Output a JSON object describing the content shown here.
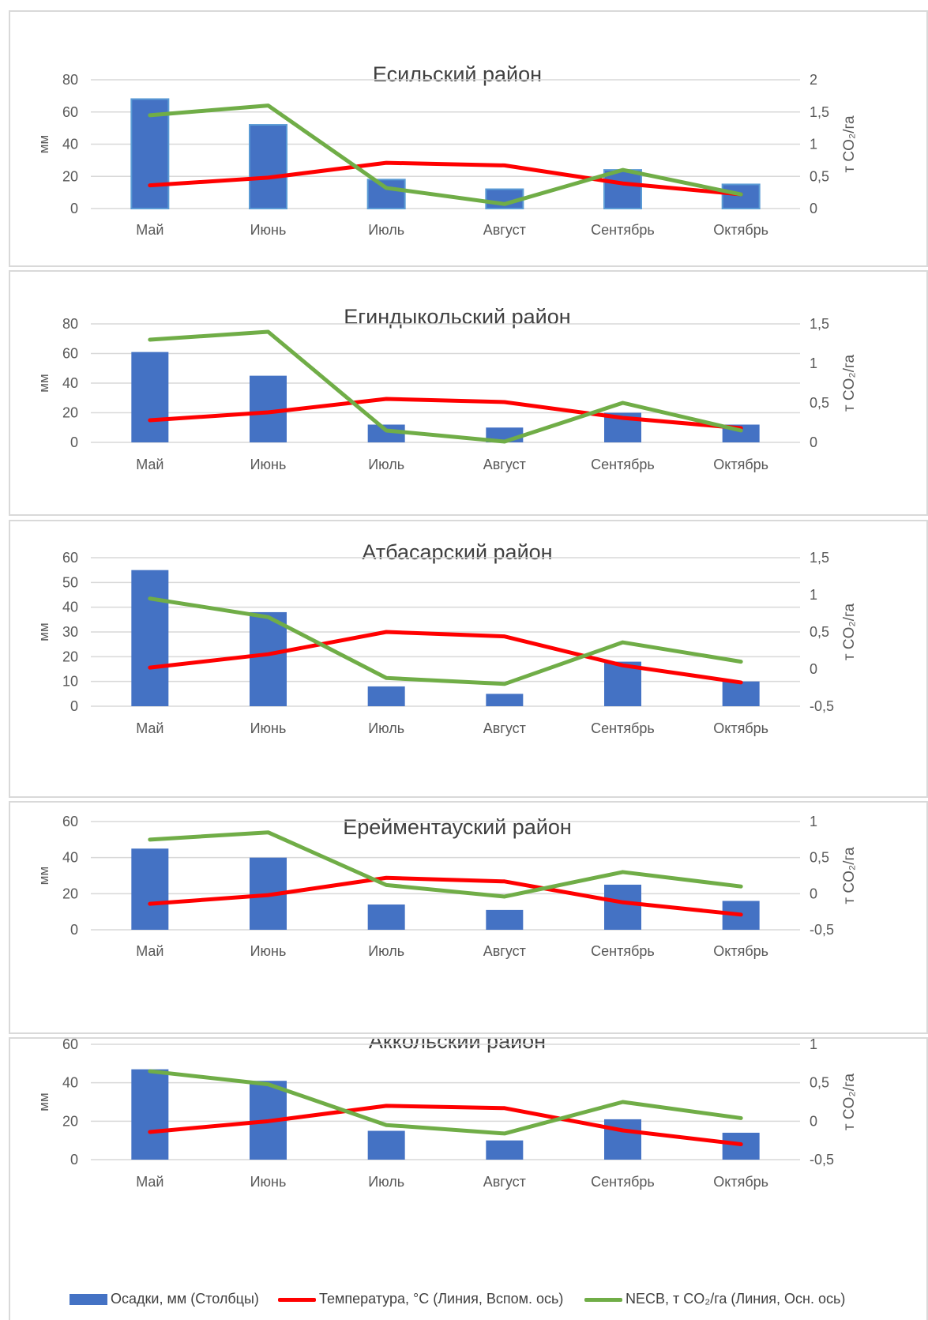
{
  "colors": {
    "bars": "#4472c4",
    "temperature": "#ff0000",
    "necb": "#70ad47",
    "grid": "#d9d9d9",
    "text": "#595959"
  },
  "legend": {
    "bars": "Осадки, мм (Столбцы)",
    "temperature": "Температура, °C (Линия, Вспом. ось)",
    "necb": "NECB, т CO₂/га (Линия, Осн. ось)"
  },
  "chart_data": [
    {
      "type": "bar",
      "title": "Есильский район",
      "categories": [
        "Май",
        "Июнь",
        "Июль",
        "Август",
        "Сентябрь",
        "Октябрь"
      ],
      "ylabel": "мм",
      "y2label": "т CO₂/га",
      "ylim": [
        0,
        80
      ],
      "yticks": [
        0,
        20,
        40,
        60,
        80
      ],
      "y2lim": [
        0,
        2
      ],
      "y2ticks": [
        "0",
        "0,5",
        "1",
        "1,5",
        "2"
      ],
      "y2tickvals": [
        0,
        0.5,
        1,
        1.5,
        2
      ],
      "bars": [
        68,
        52,
        18,
        12,
        24,
        15
      ],
      "temperature": [
        0.36,
        0.48,
        0.71,
        0.67,
        0.39,
        0.22
      ],
      "necb": [
        1.45,
        1.6,
        0.32,
        0.07,
        0.6,
        0.22
      ]
    },
    {
      "type": "bar",
      "title": "Егиндыкольский район",
      "categories": [
        "Май",
        "Июнь",
        "Июль",
        "Август",
        "Сентябрь",
        "Октябрь"
      ],
      "ylabel": "мм",
      "y2label": "т CO₂/га",
      "ylim": [
        0,
        80
      ],
      "yticks": [
        0,
        20,
        40,
        60,
        80
      ],
      "y2lim": [
        0,
        1.5
      ],
      "y2ticks": [
        "0",
        "0,5",
        "1",
        "1,5"
      ],
      "y2tickvals": [
        0,
        0.5,
        1,
        1.5
      ],
      "bars": [
        61,
        45,
        12,
        10,
        20,
        12
      ],
      "temperature": [
        0.28,
        0.38,
        0.55,
        0.51,
        0.31,
        0.18
      ],
      "necb": [
        1.3,
        1.4,
        0.15,
        0.01,
        0.5,
        0.15
      ]
    },
    {
      "type": "bar",
      "title": "Атбасарский район",
      "categories": [
        "Май",
        "Июнь",
        "Июль",
        "Август",
        "Сентябрь",
        "Октябрь"
      ],
      "ylabel": "мм",
      "y2label": "т CO₂/га",
      "ylim": [
        0,
        60
      ],
      "yticks": [
        0,
        10,
        20,
        30,
        40,
        50,
        60
      ],
      "y2lim": [
        -0.5,
        1.5
      ],
      "y2ticks": [
        "-0,5",
        "0",
        "0,5",
        "1",
        "1,5"
      ],
      "y2tickvals": [
        -0.5,
        0,
        0.5,
        1,
        1.5
      ],
      "bars": [
        55,
        38,
        8,
        5,
        18,
        10
      ],
      "temperature": [
        0.02,
        0.2,
        0.5,
        0.44,
        0.05,
        -0.18
      ],
      "necb": [
        0.95,
        0.7,
        -0.12,
        -0.2,
        0.36,
        0.1
      ]
    },
    {
      "type": "bar",
      "title": "Ерейментауский район",
      "categories": [
        "Май",
        "Июнь",
        "Июль",
        "Август",
        "Сентябрь",
        "Октябрь"
      ],
      "ylabel": "мм",
      "y2label": "т CO₂/га",
      "ylim": [
        0,
        60
      ],
      "yticks": [
        0,
        20,
        40,
        60
      ],
      "y2lim": [
        -0.5,
        1
      ],
      "y2ticks": [
        "-0,5",
        "0",
        "0,5",
        "1"
      ],
      "y2tickvals": [
        -0.5,
        0,
        0.5,
        1
      ],
      "bars": [
        45,
        40,
        14,
        11,
        25,
        16
      ],
      "temperature": [
        -0.14,
        -0.02,
        0.22,
        0.17,
        -0.12,
        -0.29
      ],
      "necb": [
        0.75,
        0.85,
        0.12,
        -0.04,
        0.3,
        0.1
      ]
    },
    {
      "type": "bar",
      "title": "Аккольский район",
      "categories": [
        "Май",
        "Июнь",
        "Июль",
        "Август",
        "Сентябрь",
        "Октябрь"
      ],
      "ylabel": "мм",
      "y2label": "т CO₂/га",
      "ylim": [
        0,
        60
      ],
      "yticks": [
        0,
        20,
        40,
        60
      ],
      "y2lim": [
        -0.5,
        1
      ],
      "y2ticks": [
        "-0,5",
        "0",
        "0,5",
        "1"
      ],
      "y2tickvals": [
        -0.5,
        0,
        0.5,
        1
      ],
      "bars": [
        47,
        41,
        15,
        10,
        21,
        14
      ],
      "temperature": [
        -0.14,
        0,
        0.2,
        0.17,
        -0.12,
        -0.3
      ],
      "necb": [
        0.65,
        0.48,
        -0.05,
        -0.16,
        0.25,
        0.04
      ]
    }
  ]
}
